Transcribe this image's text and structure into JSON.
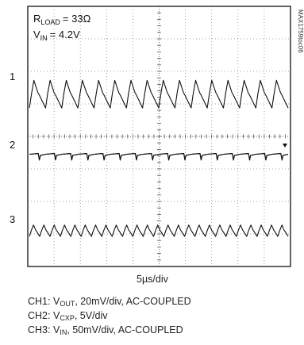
{
  "chart_data": {
    "type": "line",
    "title": "",
    "annotations": {
      "r_load": {
        "name": "R",
        "sub": "LOAD",
        "value": "= 33Ω"
      },
      "v_in": {
        "name": "V",
        "sub": "IN",
        "value": "= 4.2V"
      },
      "figure_id": "MAX1759toc06"
    },
    "grid": {
      "on": true,
      "xdivs": 10,
      "ydivs": 8
    },
    "x_scale_label": "5µs/div",
    "channel_markers": [
      "1",
      "2",
      "3"
    ],
    "series": [
      {
        "channel": "CH1",
        "sym": "V",
        "sub": "OUT",
        "rest": ", 20mV/div, AC-COUPLED",
        "waveform": "sawtooth",
        "cycles": 16,
        "center_div": 5.3,
        "amplitude_div": 0.85
      },
      {
        "channel": "CH2",
        "sym": "V",
        "sub": "CXP",
        "rest": ", 5V/div",
        "waveform": "pulse",
        "cycles": 16,
        "center_div": 3.45,
        "amplitude_div": 0.08
      },
      {
        "channel": "CH3",
        "sym": "V",
        "sub": "IN",
        "rest": ", 50mV/div, AC-COUPLED",
        "waveform": "sawtooth",
        "cycles": 25,
        "center_div": 1.1,
        "amplitude_div": 0.35
      }
    ]
  }
}
